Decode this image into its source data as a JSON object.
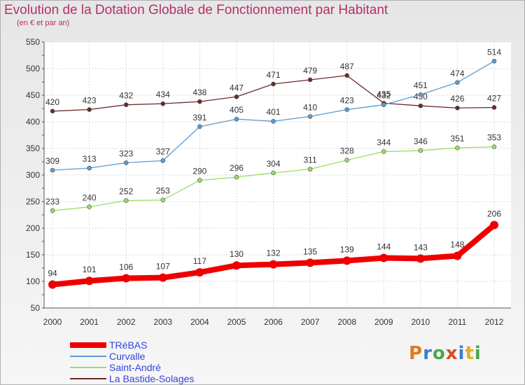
{
  "title": "Evolution de la Dotation Globale de Fonctionnement par Habitant",
  "subtitle": "(en € et par an)",
  "logo": {
    "letters": [
      "P",
      "r",
      "o",
      "x",
      "i",
      "t",
      "i"
    ],
    "colors": [
      "#e07a20",
      "#3a7fd0",
      "#4aa84a",
      "#d94b2a",
      "#3a7fd0",
      "#e0b020",
      "#4aa84a"
    ]
  },
  "chart_data": {
    "type": "line",
    "x": [
      "2000",
      "2001",
      "2002",
      "2003",
      "2004",
      "2005",
      "2006",
      "2007",
      "2008",
      "2009",
      "2010",
      "2011",
      "2012"
    ],
    "ylim": [
      50,
      550
    ],
    "yticks": [
      50,
      100,
      150,
      200,
      250,
      300,
      350,
      400,
      450,
      500,
      550
    ],
    "grid": true,
    "legend_position": "bottom-left",
    "series": [
      {
        "name": "TRéBAS",
        "color": "#ee0000",
        "values": [
          94,
          101,
          106,
          107,
          117,
          130,
          132,
          135,
          139,
          144,
          143,
          148,
          206
        ]
      },
      {
        "name": "Curvalle",
        "color": "#5c9bd1",
        "values": [
          309,
          313,
          323,
          327,
          391,
          405,
          401,
          410,
          423,
          432,
          451,
          474,
          514
        ]
      },
      {
        "name": "Saint-André",
        "color": "#99dd66",
        "values": [
          233,
          240,
          252,
          253,
          290,
          296,
          304,
          311,
          328,
          344,
          346,
          351,
          353
        ]
      },
      {
        "name": "La Bastide-Solages",
        "color": "#6b2a2a",
        "values": [
          420,
          423,
          432,
          434,
          438,
          447,
          471,
          479,
          487,
          435,
          430,
          426,
          427
        ]
      }
    ]
  }
}
